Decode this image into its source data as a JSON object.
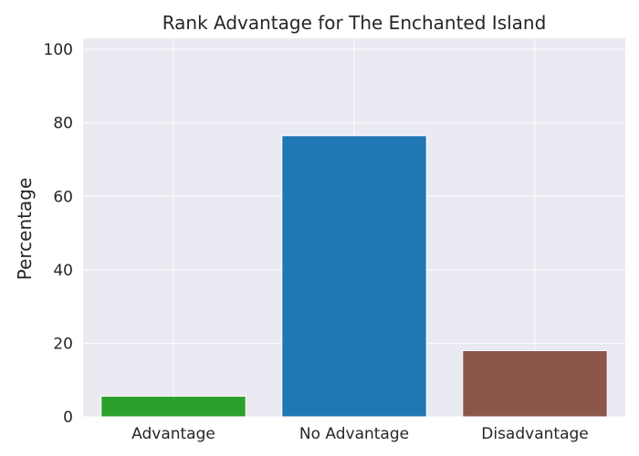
{
  "chart_data": {
    "type": "bar",
    "title": "Rank Advantage for The Enchanted Island",
    "xlabel": "",
    "ylabel": "Percentage",
    "categories": [
      "Advantage",
      "No Advantage",
      "Disadvantage"
    ],
    "values": [
      5.6,
      76.5,
      18.0
    ],
    "colors": [
      "#2ca02c",
      "#1f77b4",
      "#8c564b"
    ],
    "ylim": [
      0,
      103
    ],
    "yticks": [
      0,
      20,
      40,
      60,
      80,
      100
    ],
    "grid": true,
    "legend": "none",
    "background": "#eaeaf2",
    "grid_color": "#ffffff"
  }
}
